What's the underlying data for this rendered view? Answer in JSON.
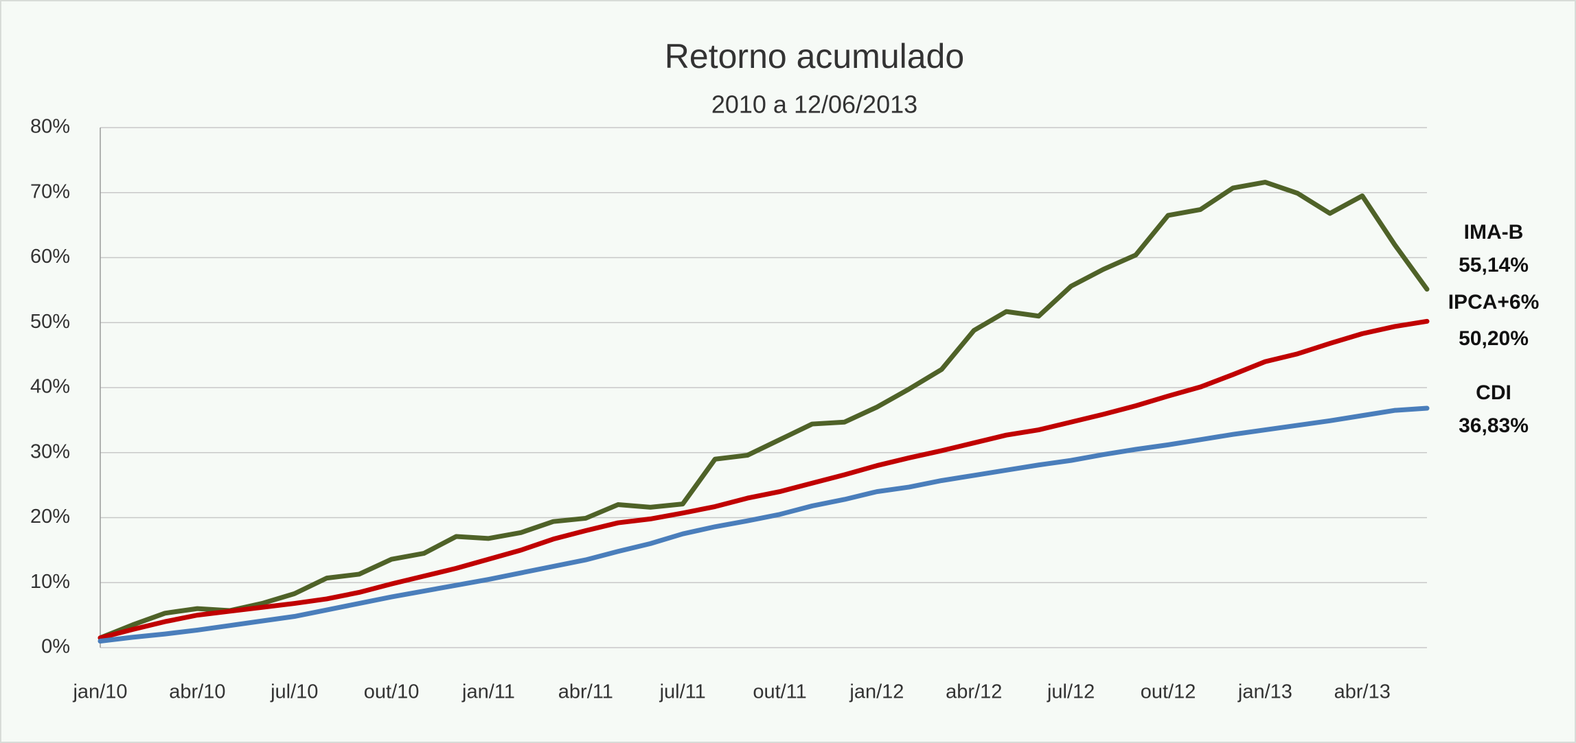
{
  "chart_data": {
    "type": "line",
    "title": "Retorno acumulado",
    "subtitle": "2010 a 12/06/2013",
    "categories": [
      "jan/10",
      null,
      null,
      "abr/10",
      null,
      null,
      "jul/10",
      null,
      null,
      "out/10",
      null,
      null,
      "jan/11",
      null,
      null,
      "abr/11",
      null,
      null,
      "jul/11",
      null,
      null,
      "out/11",
      null,
      null,
      "jan/12",
      null,
      null,
      "abr/12",
      null,
      null,
      "jul/12",
      null,
      null,
      "out/12",
      null,
      null,
      "jan/13",
      null,
      null,
      "abr/13",
      null,
      null
    ],
    "ylim": [
      0,
      80
    ],
    "yticks": [
      {
        "value": 0,
        "label": "0%"
      },
      {
        "value": 10,
        "label": "10%"
      },
      {
        "value": 20,
        "label": "20%"
      },
      {
        "value": 30,
        "label": "30%"
      },
      {
        "value": 40,
        "label": "40%"
      },
      {
        "value": 50,
        "label": "50%"
      },
      {
        "value": 60,
        "label": "60%"
      },
      {
        "value": 70,
        "label": "70%"
      },
      {
        "value": 80,
        "label": "80%"
      }
    ],
    "grid": true,
    "series": [
      {
        "name": "IMA-B",
        "color": "#4f6228",
        "values": [
          1.5,
          3.5,
          5.3,
          6,
          5.7,
          6.8,
          8.3,
          10.7,
          11.3,
          13.6,
          14.5,
          17.1,
          16.8,
          17.7,
          19.4,
          19.9,
          22,
          21.6,
          22.1,
          29,
          29.6,
          32,
          34.4,
          34.7,
          37,
          39.8,
          42.8,
          48.8,
          51.7,
          51,
          55.6,
          58.2,
          60.4,
          66.5,
          67.4,
          70.7,
          71.6,
          69.9,
          66.8,
          69.5,
          62,
          55.14
        ],
        "value_labels": [
          null,
          null,
          null,
          null,
          null,
          null,
          null,
          null,
          null,
          null,
          null,
          null,
          null,
          null,
          null,
          null,
          null,
          null,
          null,
          null,
          null,
          null,
          null,
          null,
          null,
          null,
          null,
          null,
          null,
          null,
          null,
          null,
          null,
          null,
          null,
          null,
          null,
          null,
          null,
          null,
          null,
          "55,14%"
        ]
      },
      {
        "name": "IPCA+6%",
        "color": "#c00000",
        "values": [
          1.5,
          2.8,
          4,
          5,
          5.6,
          6.2,
          6.8,
          7.5,
          8.5,
          9.8,
          11,
          12.2,
          13.6,
          15,
          16.7,
          18,
          19.2,
          19.8,
          20.7,
          21.7,
          23,
          24,
          25.3,
          26.6,
          28,
          29.2,
          30.3,
          31.5,
          32.7,
          33.5,
          34.7,
          35.9,
          37.2,
          38.7,
          40.1,
          42,
          44,
          45.2,
          46.8,
          48.3,
          49.4,
          50.2
        ],
        "value_labels": [
          null,
          null,
          null,
          null,
          null,
          null,
          null,
          null,
          null,
          null,
          null,
          null,
          null,
          null,
          null,
          null,
          null,
          null,
          null,
          null,
          null,
          null,
          null,
          null,
          null,
          null,
          null,
          null,
          null,
          null,
          null,
          null,
          null,
          null,
          null,
          null,
          null,
          null,
          null,
          null,
          null,
          "50,20%"
        ]
      },
      {
        "name": "CDI",
        "color": "#4a7ebb",
        "values": [
          1,
          1.6,
          2.1,
          2.7,
          3.4,
          4.1,
          4.8,
          5.8,
          6.8,
          7.8,
          8.7,
          9.6,
          10.5,
          11.5,
          12.5,
          13.5,
          14.8,
          16,
          17.5,
          18.6,
          19.5,
          20.5,
          21.8,
          22.8,
          24,
          24.7,
          25.7,
          26.5,
          27.3,
          28.1,
          28.8,
          29.7,
          30.5,
          31.2,
          32,
          32.8,
          33.5,
          34.2,
          34.9,
          35.7,
          36.5,
          36.83
        ],
        "value_labels": [
          null,
          null,
          null,
          null,
          null,
          null,
          null,
          null,
          null,
          null,
          null,
          null,
          null,
          null,
          null,
          null,
          null,
          null,
          null,
          null,
          null,
          null,
          null,
          null,
          null,
          null,
          null,
          null,
          null,
          null,
          null,
          null,
          null,
          null,
          null,
          null,
          null,
          null,
          null,
          null,
          null,
          "36,83%"
        ]
      }
    ]
  }
}
